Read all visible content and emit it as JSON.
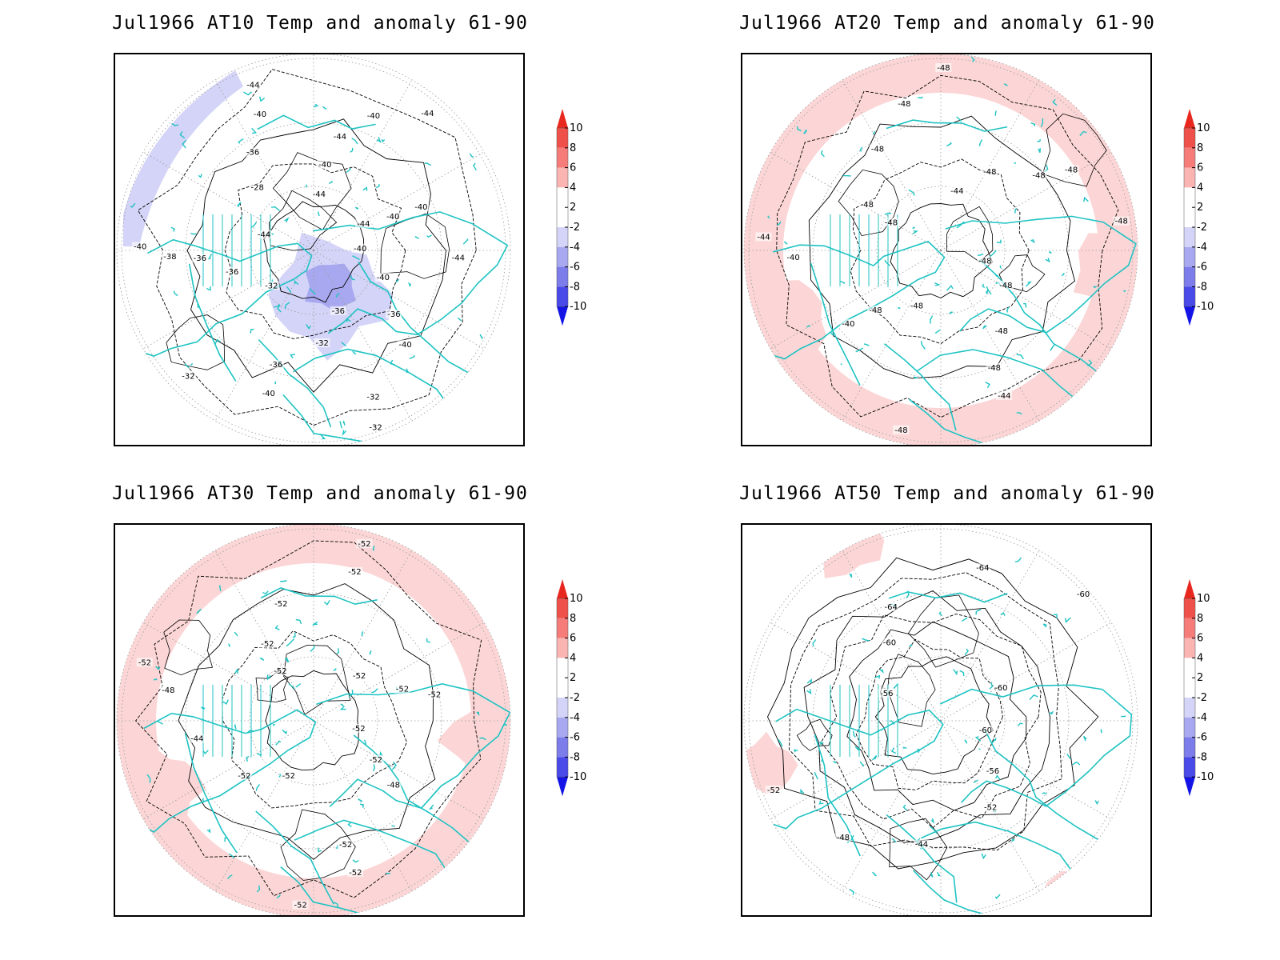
{
  "panels": [
    {
      "title": "Jul1966 AT10 Temp and anomaly 61-90",
      "anomaly": "cold",
      "contour_labels": [
        "-40",
        "-40",
        "-36",
        "-40",
        "-32",
        "-32",
        "-36",
        "-32",
        "-36",
        "-40",
        "-32",
        "-32",
        "-36",
        "-36",
        "-38",
        "-40",
        "-44",
        "-28",
        "-36",
        "-40",
        "-44",
        "-44",
        "-40",
        "-44",
        "-40",
        "-44",
        "-44",
        "-40",
        "-40",
        "-44"
      ]
    },
    {
      "title": "Jul1966 AT20 Temp and anomaly 61-90",
      "anomaly": "warm",
      "contour_labels": [
        "-48",
        "-48",
        "-48",
        "-48",
        "-44",
        "-48",
        "-48",
        "-48",
        "-40",
        "-40",
        "-44",
        "-48",
        "-48",
        "-48",
        "-48",
        "-48",
        "-44",
        "-48",
        "-48",
        "-48",
        "-48"
      ]
    },
    {
      "title": "Jul1966 AT30 Temp and anomaly 61-90",
      "anomaly": "warm",
      "contour_labels": [
        "-52",
        "-52",
        "-48",
        "-52",
        "-52",
        "-52",
        "-52",
        "-52",
        "-44",
        "-48",
        "-52",
        "-52",
        "-52",
        "-52",
        "-52",
        "-52",
        "-52",
        "-52",
        "-52"
      ]
    },
    {
      "title": "Jul1966 AT50 Temp and anomaly 61-90",
      "anomaly": "weak-warm",
      "contour_labels": [
        "-60",
        "-56",
        "-52",
        "-44",
        "-48",
        "-52",
        "-56",
        "-60",
        "-64",
        "-64",
        "-60",
        "-60"
      ]
    }
  ],
  "colorbar": {
    "labels": [
      "10",
      "8",
      "6",
      "4",
      "2",
      "-2",
      "-4",
      "-6",
      "-8",
      "-10"
    ],
    "colors": [
      "#e8281e",
      "#f0504a",
      "#f57c78",
      "#fab4b2",
      "#ffffff",
      "#d4d4f8",
      "#a8a8f0",
      "#7c7cea",
      "#4a4ae8",
      "#1414e6"
    ]
  },
  "colors": {
    "coast": "#1fc3c3",
    "contour": "#000000",
    "warm_anomaly": "#fcd6d6",
    "cold_anomaly": "#d4d4f8",
    "cold_core": "#a8a8f0"
  }
}
